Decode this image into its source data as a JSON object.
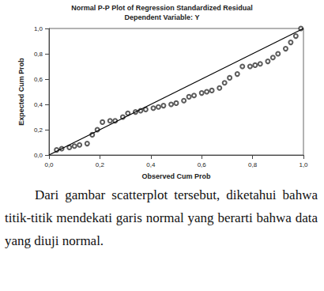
{
  "chart_data": {
    "type": "scatter",
    "title": "Normal P-P Plot of Regression Standardized Residual",
    "subtitle": "Dependent Variable: Y",
    "x_label": "Observed Cum Prob",
    "y_label": "Expected Cum Prob",
    "xlim": [
      0,
      1
    ],
    "ylim": [
      0,
      1
    ],
    "xticks": [
      {
        "value": 0,
        "label": "0,0"
      },
      {
        "value": 0.2,
        "label": "0,2"
      },
      {
        "value": 0.4,
        "label": "0,4"
      },
      {
        "value": 0.6,
        "label": "0,6"
      },
      {
        "value": 0.8,
        "label": "0,8"
      },
      {
        "value": 1,
        "label": "1,0"
      }
    ],
    "yticks": [
      {
        "value": 0,
        "label": "0,0"
      },
      {
        "value": 0.2,
        "label": "0,2"
      },
      {
        "value": 0.4,
        "label": "0,4"
      },
      {
        "value": 0.6,
        "label": "0,6"
      },
      {
        "value": 0.8,
        "label": "0,8"
      },
      {
        "value": 1,
        "label": "1,0"
      }
    ],
    "grid": false,
    "series": [
      {
        "type": "scatter",
        "marker": "circle",
        "color": "#333333",
        "x": [
          0.03,
          0.05,
          0.08,
          0.1,
          0.12,
          0.15,
          0.17,
          0.19,
          0.21,
          0.24,
          0.26,
          0.29,
          0.31,
          0.34,
          0.36,
          0.38,
          0.41,
          0.43,
          0.45,
          0.48,
          0.5,
          0.53,
          0.55,
          0.57,
          0.6,
          0.62,
          0.64,
          0.67,
          0.69,
          0.71,
          0.74,
          0.76,
          0.79,
          0.81,
          0.83,
          0.86,
          0.88,
          0.9,
          0.93,
          0.95,
          0.97,
          0.99
        ],
        "values": [
          0.04,
          0.05,
          0.06,
          0.07,
          0.08,
          0.09,
          0.16,
          0.2,
          0.26,
          0.27,
          0.27,
          0.3,
          0.33,
          0.34,
          0.35,
          0.36,
          0.37,
          0.38,
          0.39,
          0.4,
          0.41,
          0.43,
          0.46,
          0.47,
          0.49,
          0.5,
          0.51,
          0.53,
          0.57,
          0.61,
          0.64,
          0.7,
          0.7,
          0.71,
          0.72,
          0.74,
          0.77,
          0.8,
          0.84,
          0.89,
          0.94,
          1.0
        ]
      },
      {
        "type": "line",
        "line_style": "solid",
        "color": "#000000",
        "x": [
          0,
          1
        ],
        "values": [
          0,
          1
        ]
      }
    ]
  },
  "caption": "Dari gambar scatterplot tersebut, diketahui bahwa titik-titik mendekati garis normal yang berarti bahwa data yang diuji normal."
}
